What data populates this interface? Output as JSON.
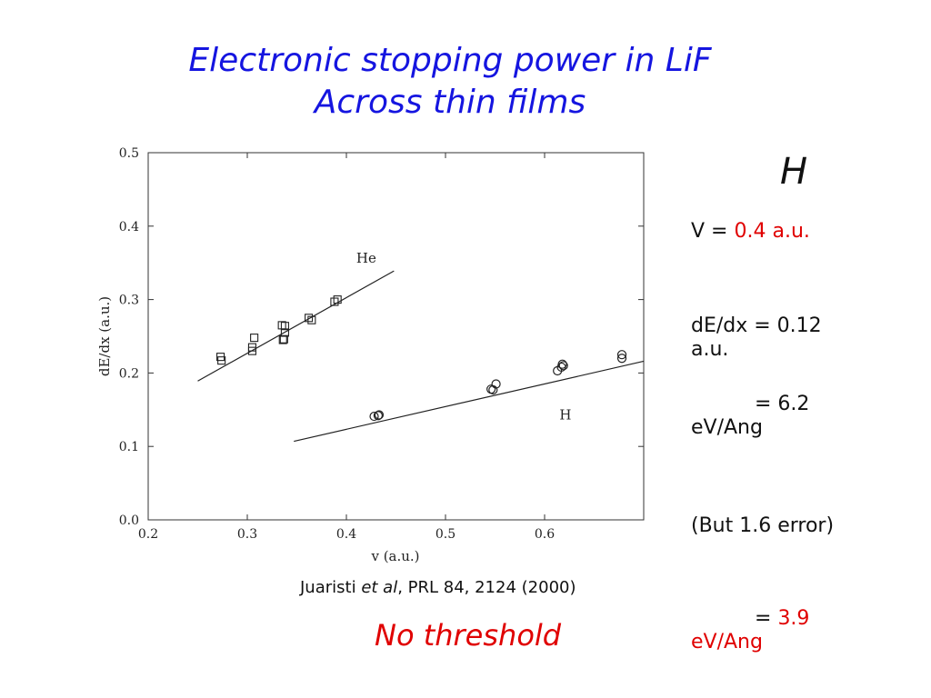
{
  "title": {
    "line1": "Electronic stopping power in LiF",
    "line2": "Across thin films"
  },
  "chart_data": {
    "type": "scatter",
    "xlabel": "v (a.u.)",
    "ylabel": "dE/dx (a.u.)",
    "xlim": [
      0.2,
      0.7
    ],
    "ylim": [
      0.0,
      0.5
    ],
    "x_ticks": [
      "0.2",
      "0.3",
      "0.4",
      "0.5",
      "0.6"
    ],
    "y_ticks": [
      "0.0",
      "0.1",
      "0.2",
      "0.3",
      "0.4",
      "0.5"
    ],
    "grid": false,
    "series": [
      {
        "name": "He",
        "marker": "square",
        "points": [
          [
            0.273,
            0.222
          ],
          [
            0.274,
            0.217
          ],
          [
            0.305,
            0.235
          ],
          [
            0.305,
            0.23
          ],
          [
            0.307,
            0.248
          ],
          [
            0.335,
            0.265
          ],
          [
            0.336,
            0.245
          ],
          [
            0.337,
            0.246
          ],
          [
            0.338,
            0.255
          ],
          [
            0.338,
            0.264
          ],
          [
            0.362,
            0.275
          ],
          [
            0.365,
            0.272
          ],
          [
            0.388,
            0.297
          ],
          [
            0.391,
            0.3
          ]
        ],
        "fit_line": [
          [
            0.25,
            0.189
          ],
          [
            0.448,
            0.339
          ]
        ]
      },
      {
        "name": "H",
        "marker": "circle",
        "points": [
          [
            0.428,
            0.141
          ],
          [
            0.432,
            0.142
          ],
          [
            0.433,
            0.143
          ],
          [
            0.546,
            0.178
          ],
          [
            0.548,
            0.177
          ],
          [
            0.551,
            0.185
          ],
          [
            0.613,
            0.203
          ],
          [
            0.617,
            0.208
          ],
          [
            0.618,
            0.212
          ],
          [
            0.619,
            0.21
          ],
          [
            0.678,
            0.225
          ],
          [
            0.678,
            0.22
          ]
        ],
        "fit_line": [
          [
            0.347,
            0.107
          ],
          [
            0.7,
            0.216
          ]
        ]
      }
    ],
    "annotations": [
      {
        "text": "He",
        "x": 0.41,
        "y": 0.35
      },
      {
        "text": "H",
        "x": 0.615,
        "y": 0.137
      }
    ]
  },
  "side": {
    "heading": "H",
    "v_label": "V = ",
    "v_value": "0.4 a.u.",
    "dedx_line1": "dE/dx = 0.12",
    "dedx_line2": "a.u.",
    "ev_line1": "= 6.2",
    "ev_line2": "eV/Ang",
    "error_note": "(But 1.6 error)",
    "red_eq": "= ",
    "red_value": "3.9",
    "red_unit": "eV/Ang"
  },
  "citation": {
    "author": "Juaristi ",
    "etal": "et al",
    "ref": ", PRL 84, 2124 (2000)"
  },
  "no_threshold": "No threshold",
  "colors": {
    "title": "#1515e0",
    "highlight": "#e00000"
  }
}
